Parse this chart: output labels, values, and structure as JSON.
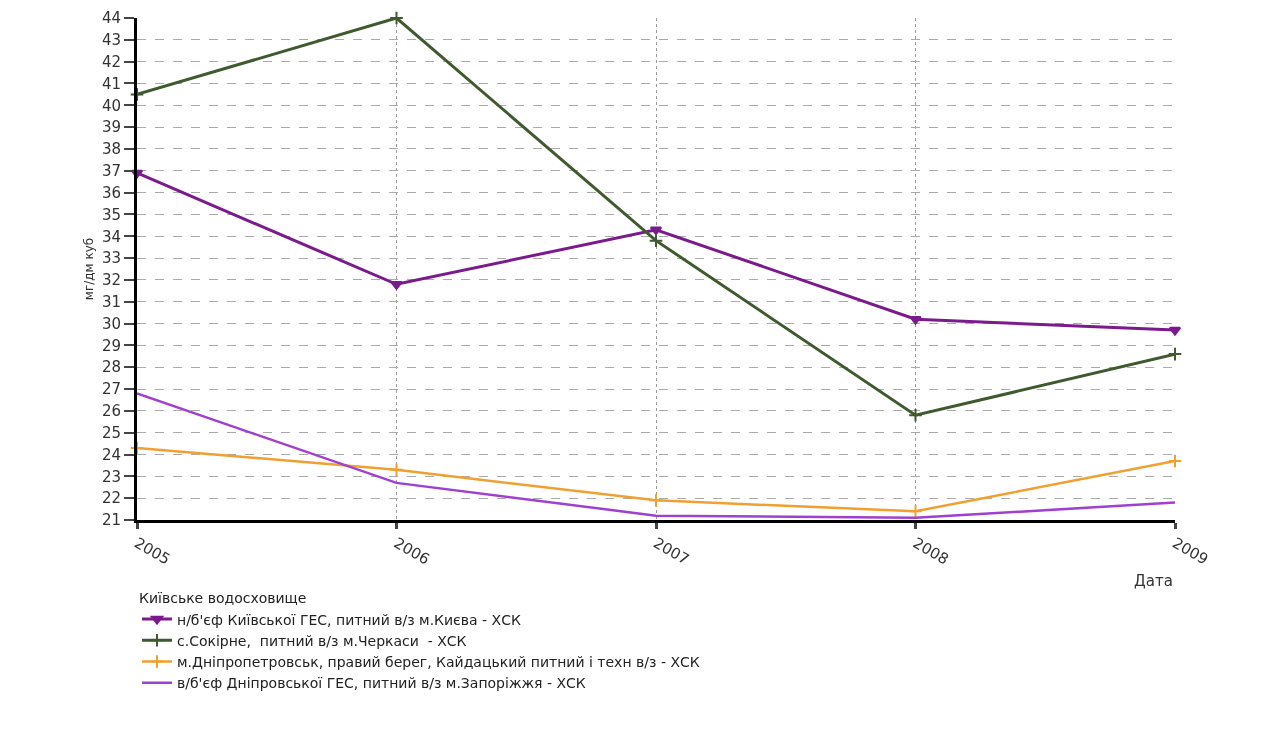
{
  "chart_data": {
    "type": "line",
    "xlabel": "Дата",
    "ylabel": "мг/дм куб",
    "legend_title": "Київське водосховище",
    "categories": [
      "2005",
      "2006",
      "2007",
      "2008",
      "2009"
    ],
    "series": [
      {
        "name": "н/б'єф Київської ГЕС, питний в/з м.Києва - ХСК",
        "color": "#7b1a8c",
        "marker": "triangle",
        "values": [
          36.9,
          31.8,
          34.3,
          30.2,
          29.7
        ]
      },
      {
        "name": "с.Сокірне,  питний в/з м.Черкаси  - ХСК",
        "color": "#3f5a2e",
        "marker": "cross",
        "values": [
          40.5,
          44.0,
          33.8,
          25.8,
          28.6
        ]
      },
      {
        "name": "м.Дніпропетровськ, правий берег, Кайдацький питний і техн в/з - ХСК",
        "color": "#f0a030",
        "marker": "cross",
        "values": [
          24.3,
          23.3,
          21.9,
          21.4,
          23.7
        ]
      },
      {
        "name": "в/б'єф Дніпровської ГЕС, питний в/з м.Запоріжжя - ХСК",
        "color": "#a040d0",
        "marker": "none",
        "values": [
          26.8,
          22.7,
          21.2,
          21.1,
          21.8
        ]
      }
    ],
    "ylim": [
      21,
      44
    ],
    "yticks": [
      21,
      22,
      23,
      24,
      25,
      26,
      27,
      28,
      29,
      30,
      31,
      32,
      33,
      34,
      35,
      36,
      37,
      38,
      39,
      40,
      41,
      42,
      43,
      44
    ],
    "grid": true,
    "legend": "bottom",
    "line_style": "solid"
  }
}
